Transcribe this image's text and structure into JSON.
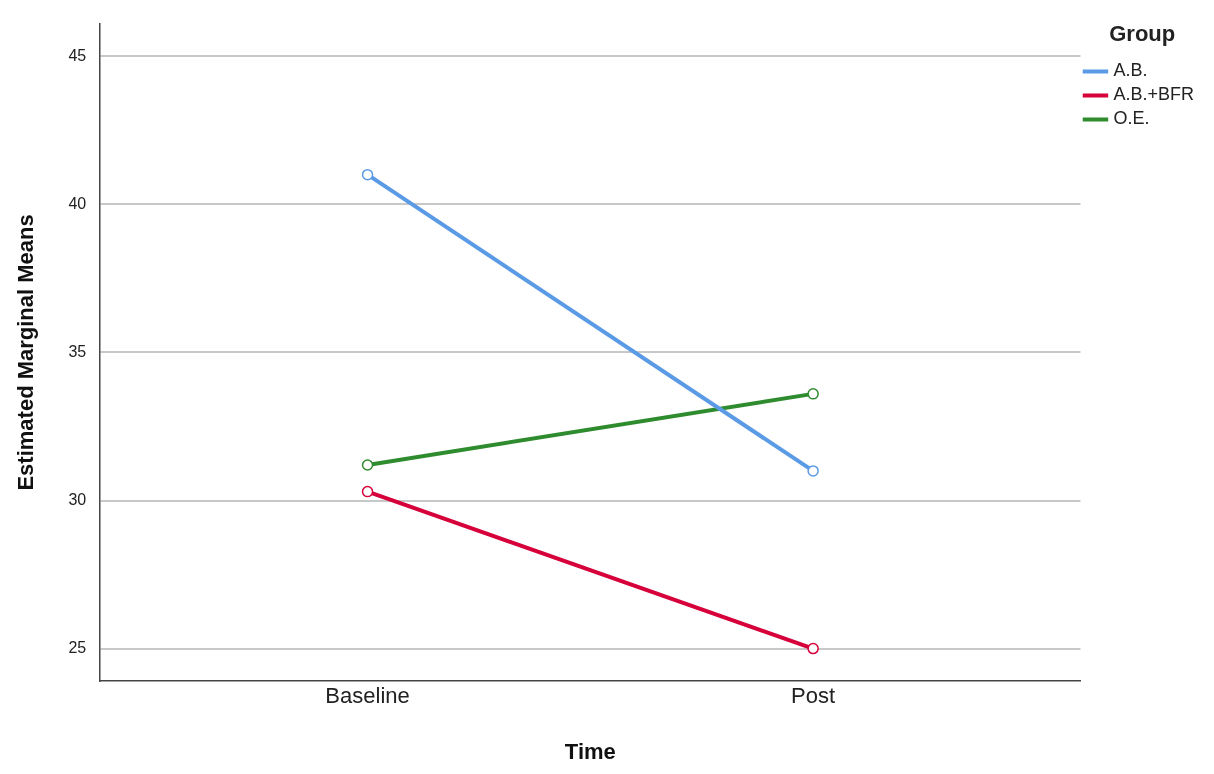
{
  "chart_data": {
    "type": "line",
    "xlabel": "Time",
    "ylabel": "Estimated Marginal Means",
    "legend_title": "Group",
    "categories": [
      "Baseline",
      "Post"
    ],
    "series": [
      {
        "name": "A.B.",
        "color": "#5b9be6",
        "values": [
          41.0,
          31.0
        ]
      },
      {
        "name": "A.B.+BFR",
        "color": "#d6003a",
        "values": [
          30.3,
          25.0
        ]
      },
      {
        "name": "O.E.",
        "color": "#2e8b2e",
        "values": [
          31.2,
          33.6
        ]
      }
    ],
    "ylim": [
      23.9,
      46.1
    ],
    "yticks": [
      25,
      30,
      35,
      40,
      45
    ],
    "grid": "y",
    "legend": "top right",
    "marker": "circle",
    "line_style": "solid"
  }
}
